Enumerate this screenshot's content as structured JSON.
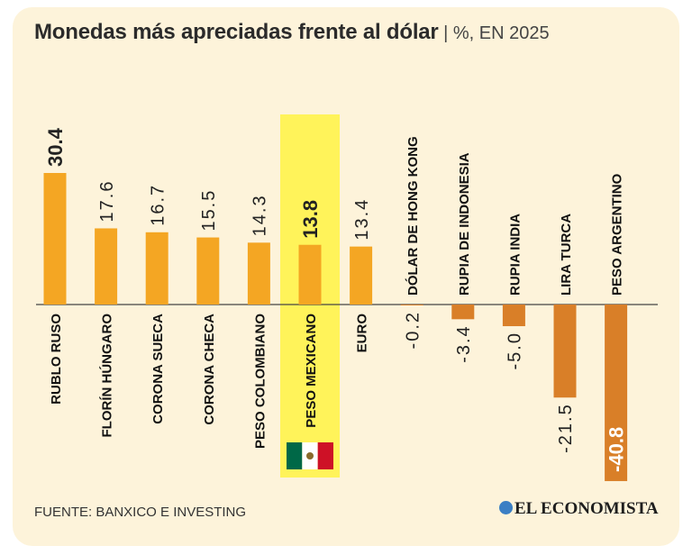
{
  "title": "Monedas más apreciadas frente al dólar",
  "subtitle": " | %, EN 2025",
  "source": "FUENTE: BANXICO E INVESTING",
  "logo": "EL ECONOMISTA",
  "flag_colors": {
    "green": "#006847",
    "white": "#ffffff",
    "red": "#ce1126"
  },
  "colors": {
    "positive": "#f4a623",
    "negative": "#d97f28",
    "highlight": "#fff35a",
    "background": "#fdf3da"
  },
  "chart_data": {
    "type": "bar",
    "title": "Monedas más apreciadas frente al dólar",
    "subtitle": "%, EN 2025",
    "categories": [
      "RUBLO RUSO",
      "FLORÍN HÚNGARO",
      "CORONA SUECA",
      "CORONA CHECA",
      "PESO COLOMBIANO",
      "PESO MEXICANO",
      "EURO",
      "DÓLAR DE HONG KONG",
      "RUPIA DE INDONESIA",
      "RUPIA INDIA",
      "LIRA TURCA",
      "PESO ARGENTINO"
    ],
    "values": [
      30.4,
      17.6,
      16.7,
      15.5,
      14.3,
      13.8,
      13.4,
      -0.2,
      -3.4,
      -5.0,
      -21.5,
      -40.8
    ],
    "value_labels": [
      "30.4",
      "17.6",
      "16.7",
      "15.5",
      "14.3",
      "13.8",
      "13.4",
      "-0.2",
      "-3.4",
      "-5.0",
      "-21.5",
      "-40.8"
    ],
    "highlight": "PESO MEXICANO",
    "bold_labels": [
      "RUBLO RUSO",
      "PESO MEXICANO",
      "PESO ARGENTINO"
    ],
    "ylim": [
      -41,
      31
    ],
    "xlabel": "",
    "ylabel": ""
  }
}
